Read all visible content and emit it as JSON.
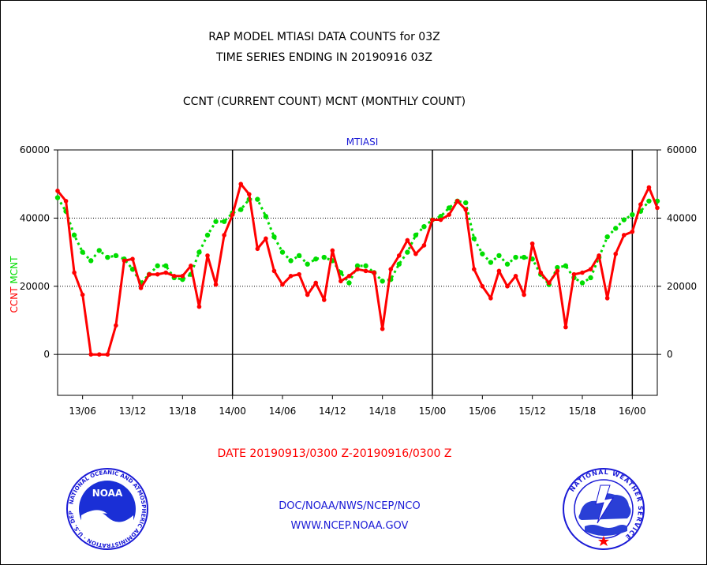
{
  "header": {
    "title_line1": "RAP MODEL MTIASI DATA COUNTS for 03Z",
    "title_line2": "TIME SERIES ENDING IN 20190916 03Z",
    "subtitle": "CCNT (CURRENT COUNT) MCNT (MONTHLY COUNT)"
  },
  "footer": {
    "date_range": "DATE 20190913/0300 Z-20190916/0300 Z",
    "org_path": "DOC/NOAA/NWS/NCEP/NCO",
    "website": "WWW.NCEP.NOAA.GOV"
  },
  "logos": {
    "left": "NOAA",
    "left_ring_text": "NATIONAL OCEANIC AND ATMOSPHERIC ADMINISTRATION · U.S. DEPARTMENT OF COMMERCE",
    "right_ring_text": "NATIONAL WEATHER SERVICE"
  },
  "colors": {
    "ccnt": "#ff0000",
    "mcnt": "#00dd00",
    "axis_title": "#1a1ad6",
    "date_range": "#ff0000",
    "links": "#1a1ad6"
  },
  "chart_data": {
    "type": "line",
    "title": "MTIASI",
    "ylabel_series": [
      {
        "text": "CCNT",
        "color": "#ff0000"
      },
      {
        "text": "MCNT",
        "color": "#00dd00"
      }
    ],
    "ylim": [
      -12000,
      60000
    ],
    "yticks": [
      0,
      20000,
      40000,
      60000
    ],
    "yticklabels": [
      "0",
      "20000",
      "40000",
      "60000"
    ],
    "xlim": [
      "2019-09-13 03:00",
      "2019-09-16 03:00"
    ],
    "xticks": [
      "13/06",
      "13/12",
      "13/18",
      "14/00",
      "14/06",
      "14/12",
      "14/18",
      "15/00",
      "15/06",
      "15/12",
      "15/18",
      "16/00"
    ],
    "grid": {
      "horizontal_dotted": [
        20000,
        40000
      ],
      "day_boundaries": [
        "14/00",
        "15/00",
        "16/00"
      ]
    },
    "x_step_hours": 1,
    "series": [
      {
        "name": "CCNT",
        "color": "#ff0000",
        "values": [
          48000,
          45000,
          24000,
          17500,
          0,
          0,
          0,
          8500,
          27500,
          28000,
          19500,
          23500,
          23500,
          24000,
          23000,
          23000,
          26000,
          14000,
          29000,
          20500,
          35000,
          41000,
          50000,
          47000,
          31000,
          34000,
          24500,
          20500,
          23000,
          23500,
          17500,
          21000,
          16000,
          30500,
          21500,
          23000,
          25000,
          24500,
          24000,
          7500,
          25000,
          29000,
          33500,
          29500,
          32000,
          39500,
          39500,
          41000,
          45000,
          42500,
          25000,
          20000,
          16500,
          24500,
          20000,
          23000,
          17500,
          32500,
          24000,
          21000,
          24500,
          8000,
          23500,
          24000,
          25000,
          29000,
          16500,
          29500,
          35000,
          36000,
          44000,
          49000,
          43000
        ]
      },
      {
        "name": "MCNT",
        "color": "#00dd00",
        "values": [
          46000,
          42000,
          35000,
          30000,
          27500,
          30500,
          28500,
          29000,
          28000,
          25000,
          21000,
          23500,
          26000,
          26000,
          22500,
          22000,
          23500,
          30000,
          35000,
          39000,
          39000,
          41500,
          42500,
          45500,
          45500,
          40500,
          34500,
          30000,
          27500,
          29000,
          26500,
          28000,
          28500,
          27500,
          24000,
          21000,
          26000,
          26000,
          24000,
          21500,
          22000,
          26500,
          30000,
          35000,
          37500,
          39500,
          40500,
          43000,
          45000,
          44500,
          34000,
          29500,
          27000,
          29000,
          26500,
          28500,
          28500,
          28000,
          23500,
          20500,
          25500,
          26000,
          22500,
          21000,
          22500,
          28500,
          34500,
          37000,
          39500,
          41000,
          42000,
          45000,
          45000
        ]
      }
    ]
  }
}
